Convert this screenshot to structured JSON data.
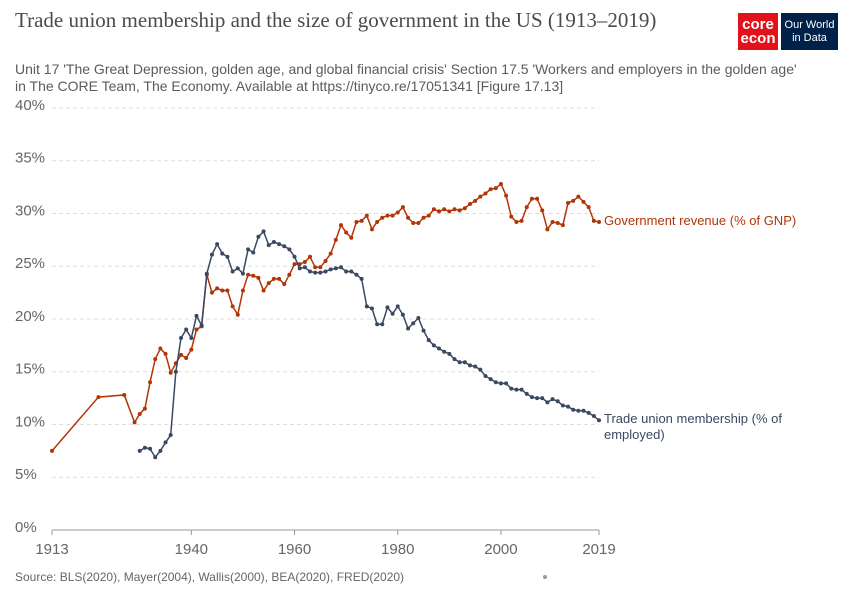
{
  "header": {
    "logo_core": "core",
    "logo_econ": "econ",
    "logo_owid": "Our World in Data"
  },
  "chart_data": {
    "type": "line",
    "title": "Trade union membership and the size of government in the US (1913–2019)",
    "subtitle": "Unit 17 'The Great Depression, golden age, and global financial crisis' Section 17.5 'Workers and employers in the golden age' in The CORE Team, The Economy. Available at https://tinyco.re/17051341 [Figure 17.13]",
    "source": "Source: BLS(2020), Mayer(2004), Wallis(2000), BEA(2020), FRED(2020)",
    "xlim": [
      1913,
      2019
    ],
    "xticks": [
      1913,
      1940,
      1960,
      1980,
      2000,
      2019
    ],
    "ylim": [
      0,
      40
    ],
    "yticks": [
      {
        "value": 0,
        "label": "0%"
      },
      {
        "value": 5,
        "label": "5%"
      },
      {
        "value": 10,
        "label": "10%"
      },
      {
        "value": 15,
        "label": "15%"
      },
      {
        "value": 20,
        "label": "20%"
      },
      {
        "value": 25,
        "label": "25%"
      },
      {
        "value": 30,
        "label": "30%"
      },
      {
        "value": 35,
        "label": "35%"
      },
      {
        "value": 40,
        "label": "40%"
      }
    ],
    "grid": true,
    "series": [
      {
        "name": "Government revenue (% of GNP)",
        "color": "#b13507",
        "x": [
          1913,
          1922,
          1927,
          1929,
          1930,
          1931,
          1932,
          1933,
          1934,
          1935,
          1936,
          1937,
          1938,
          1939,
          1940,
          1941,
          1942,
          1943,
          1944,
          1945,
          1946,
          1947,
          1948,
          1949,
          1950,
          1951,
          1952,
          1953,
          1954,
          1955,
          1956,
          1957,
          1958,
          1959,
          1960,
          1961,
          1962,
          1963,
          1964,
          1965,
          1966,
          1967,
          1968,
          1969,
          1970,
          1971,
          1972,
          1973,
          1974,
          1975,
          1976,
          1977,
          1978,
          1979,
          1980,
          1981,
          1982,
          1983,
          1984,
          1985,
          1986,
          1987,
          1988,
          1989,
          1990,
          1991,
          1992,
          1993,
          1994,
          1995,
          1996,
          1997,
          1998,
          1999,
          2000,
          2001,
          2002,
          2003,
          2004,
          2005,
          2006,
          2007,
          2008,
          2009,
          2010,
          2011,
          2012,
          2013,
          2014,
          2015,
          2016,
          2017,
          2018,
          2019
        ],
        "values": [
          7.5,
          12.6,
          12.8,
          10.2,
          11,
          11.5,
          14,
          16.2,
          17.2,
          16.7,
          14.9,
          15.8,
          16.6,
          16.3,
          17.1,
          19,
          19.3,
          24.2,
          22.5,
          22.9,
          22.7,
          22.7,
          21.2,
          20.4,
          22.7,
          24.2,
          24.1,
          23.9,
          22.7,
          23.4,
          23.8,
          23.8,
          23.3,
          24.2,
          25.2,
          25.2,
          25.4,
          25.9,
          24.9,
          24.9,
          25.5,
          26.2,
          27.5,
          28.9,
          28.2,
          27.7,
          29.2,
          29.3,
          29.8,
          28.5,
          29.2,
          29.6,
          29.8,
          29.8,
          30.1,
          30.6,
          29.6,
          29.1,
          29.1,
          29.6,
          29.8,
          30.4,
          30.2,
          30.4,
          30.2,
          30.4,
          30.3,
          30.5,
          30.9,
          31.2,
          31.6,
          31.9,
          32.3,
          32.4,
          32.8,
          31.7,
          29.7,
          29.2,
          29.3,
          30.6,
          31.4,
          31.4,
          30.3,
          28.5,
          29.2,
          29.1,
          28.9,
          31.0,
          31.2,
          31.6,
          31.1,
          30.6,
          29.3,
          29.2
        ]
      },
      {
        "name": "Trade union membership (% of employed)",
        "color": "#3a4861",
        "x": [
          1930,
          1931,
          1932,
          1933,
          1934,
          1935,
          1936,
          1937,
          1938,
          1939,
          1940,
          1941,
          1942,
          1943,
          1944,
          1945,
          1946,
          1947,
          1948,
          1949,
          1950,
          1951,
          1952,
          1953,
          1954,
          1955,
          1956,
          1957,
          1958,
          1959,
          1960,
          1961,
          1962,
          1963,
          1964,
          1965,
          1966,
          1967,
          1968,
          1969,
          1970,
          1971,
          1972,
          1973,
          1974,
          1975,
          1976,
          1977,
          1978,
          1979,
          1980,
          1981,
          1982,
          1983,
          1984,
          1985,
          1986,
          1987,
          1988,
          1989,
          1990,
          1991,
          1992,
          1993,
          1994,
          1995,
          1996,
          1997,
          1998,
          1999,
          2000,
          2001,
          2002,
          2003,
          2004,
          2005,
          2006,
          2007,
          2008,
          2009,
          2010,
          2011,
          2012,
          2013,
          2014,
          2015,
          2016,
          2017,
          2018,
          2019
        ],
        "values": [
          7.5,
          7.8,
          7.7,
          6.9,
          7.5,
          8.3,
          9,
          15,
          18.2,
          19,
          18.2,
          20.3,
          19.4,
          24.3,
          26.1,
          27.1,
          26.2,
          25.9,
          24.5,
          24.8,
          24.3,
          26.6,
          26.3,
          27.8,
          28.3,
          27,
          27.3,
          27.1,
          26.9,
          26.6,
          25.9,
          24.8,
          24.9,
          24.5,
          24.4,
          24.4,
          24.5,
          24.7,
          24.8,
          24.9,
          24.5,
          24.5,
          24.2,
          23.8,
          21.2,
          21,
          19.5,
          19.5,
          21.1,
          20.5,
          21.2,
          20.4,
          19.1,
          19.6,
          20.1,
          18.9,
          18,
          17.5,
          17.2,
          16.9,
          16.7,
          16.2,
          15.9,
          15.9,
          15.6,
          15.5,
          15.2,
          14.6,
          14.3,
          14,
          13.9,
          13.9,
          13.4,
          13.3,
          13.3,
          12.9,
          12.6,
          12.5,
          12.5,
          12.1,
          12.4,
          12.2,
          11.8,
          11.7,
          11.4,
          11.3,
          11.3,
          11.1,
          10.8,
          10.4
        ]
      }
    ]
  }
}
